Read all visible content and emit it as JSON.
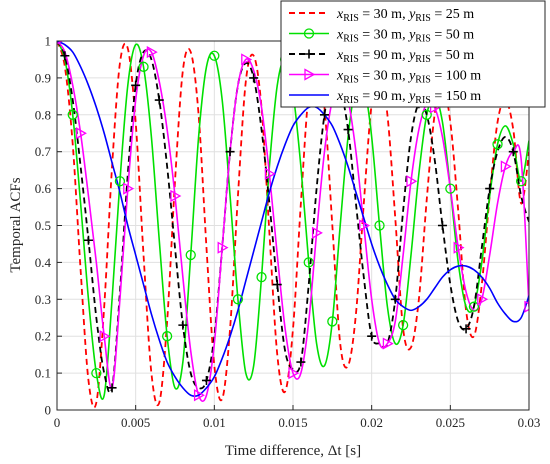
{
  "chart_data": {
    "type": "line",
    "title": "",
    "xlabel": "Time difference, Δt [s]",
    "ylabel": "Temporal ACFs",
    "xlim": [
      0,
      0.03
    ],
    "ylim": [
      0,
      1
    ],
    "x_ticks": [
      0,
      0.005,
      0.01,
      0.015,
      0.02,
      0.025,
      0.03
    ],
    "x_tick_labels": [
      "0",
      "0.005",
      "0.01",
      "0.015",
      "0.02",
      "0.025",
      "0.03"
    ],
    "y_ticks": [
      0,
      0.1,
      0.2,
      0.3,
      0.4,
      0.5,
      0.6,
      0.7,
      0.8,
      0.9,
      1
    ],
    "y_tick_labels": [
      "0",
      "0.1",
      "0.2",
      "0.3",
      "0.4",
      "0.5",
      "0.6",
      "0.7",
      "0.8",
      "0.9",
      "1"
    ],
    "grid": true,
    "legend_position": "top-right",
    "series": [
      {
        "name": "x_RIS = 30 m, y_RIS = 25 m",
        "legend_main": [
          "x",
          "= 30 m, ",
          "y",
          "= 25 m"
        ],
        "legend_sub": [
          "RIS",
          "RIS"
        ],
        "color": "#ff0000",
        "line_style": "dashed",
        "marker": "none",
        "x": [
          0,
          0.0005,
          0.001,
          0.0015,
          0.002,
          0.0025,
          0.003,
          0.0035,
          0.004,
          0.0045,
          0.005,
          0.0055,
          0.006,
          0.0065,
          0.007,
          0.0075,
          0.008,
          0.0085,
          0.009,
          0.0095,
          0.01,
          0.0105,
          0.011,
          0.0115,
          0.012,
          0.0125,
          0.013,
          0.0135,
          0.014,
          0.0145,
          0.015,
          0.0155,
          0.016,
          0.0165,
          0.017,
          0.0175,
          0.018,
          0.0185,
          0.019,
          0.0195,
          0.02,
          0.0205,
          0.021,
          0.0215,
          0.022,
          0.0225,
          0.023,
          0.0235,
          0.024,
          0.0245,
          0.025,
          0.0255,
          0.026,
          0.0265,
          0.027,
          0.0275,
          0.028,
          0.0285,
          0.029,
          0.0295,
          0.03
        ],
        "y": [
          1.0,
          0.93,
          0.72,
          0.38,
          0.08,
          0.02,
          0.28,
          0.66,
          0.94,
          0.98,
          0.78,
          0.42,
          0.1,
          0.02,
          0.24,
          0.62,
          0.92,
          0.97,
          0.8,
          0.44,
          0.12,
          0.03,
          0.22,
          0.58,
          0.89,
          0.96,
          0.82,
          0.48,
          0.15,
          0.05,
          0.22,
          0.56,
          0.86,
          0.94,
          0.82,
          0.5,
          0.18,
          0.12,
          0.26,
          0.56,
          0.83,
          0.91,
          0.8,
          0.52,
          0.22,
          0.17,
          0.3,
          0.57,
          0.8,
          0.88,
          0.78,
          0.54,
          0.27,
          0.2,
          0.34,
          0.58,
          0.78,
          0.84,
          0.76,
          0.56,
          0.7
        ]
      },
      {
        "name": "x_RIS = 30 m, y_RIS = 50 m",
        "legend_main": [
          "x",
          "= 30 m, ",
          "y",
          "= 50 m"
        ],
        "legend_sub": [
          "RIS",
          "RIS"
        ],
        "color": "#00e000",
        "line_style": "solid",
        "marker": "circle",
        "x": [
          0,
          0.0005,
          0.001,
          0.0015,
          0.002,
          0.0025,
          0.003,
          0.0035,
          0.004,
          0.0045,
          0.005,
          0.0055,
          0.006,
          0.0065,
          0.007,
          0.0075,
          0.008,
          0.0085,
          0.009,
          0.0095,
          0.01,
          0.0105,
          0.011,
          0.0115,
          0.012,
          0.0125,
          0.013,
          0.0135,
          0.014,
          0.0145,
          0.015,
          0.0155,
          0.016,
          0.0165,
          0.017,
          0.0175,
          0.018,
          0.0185,
          0.019,
          0.0195,
          0.02,
          0.0205,
          0.021,
          0.0215,
          0.022,
          0.0225,
          0.023,
          0.0235,
          0.024,
          0.0245,
          0.025,
          0.0255,
          0.026,
          0.0265,
          0.027,
          0.0275,
          0.028,
          0.0285,
          0.029,
          0.0295,
          0.03
        ],
        "y": [
          1.0,
          0.95,
          0.8,
          0.56,
          0.3,
          0.1,
          0.04,
          0.3,
          0.62,
          0.88,
          0.99,
          0.93,
          0.74,
          0.46,
          0.2,
          0.06,
          0.13,
          0.42,
          0.74,
          0.93,
          0.96,
          0.84,
          0.58,
          0.3,
          0.1,
          0.12,
          0.36,
          0.66,
          0.88,
          0.95,
          0.86,
          0.66,
          0.4,
          0.18,
          0.12,
          0.24,
          0.5,
          0.74,
          0.88,
          0.88,
          0.74,
          0.5,
          0.28,
          0.18,
          0.23,
          0.42,
          0.64,
          0.8,
          0.85,
          0.78,
          0.6,
          0.4,
          0.28,
          0.28,
          0.4,
          0.58,
          0.72,
          0.77,
          0.72,
          0.62,
          0.73
        ]
      },
      {
        "name": "x_RIS = 90 m, y_RIS = 50 m",
        "legend_main": [
          "x",
          "= 90 m, ",
          "y",
          "= 50 m"
        ],
        "legend_sub": [
          "RIS",
          "RIS"
        ],
        "color": "#000000",
        "line_style": "dashed",
        "marker": "plus",
        "x": [
          0,
          0.0005,
          0.001,
          0.0015,
          0.002,
          0.0025,
          0.003,
          0.0035,
          0.004,
          0.0045,
          0.005,
          0.0055,
          0.006,
          0.0065,
          0.007,
          0.0075,
          0.008,
          0.0085,
          0.009,
          0.0095,
          0.01,
          0.0105,
          0.011,
          0.0115,
          0.012,
          0.0125,
          0.013,
          0.0135,
          0.014,
          0.0145,
          0.015,
          0.0155,
          0.016,
          0.0165,
          0.017,
          0.0175,
          0.018,
          0.0185,
          0.019,
          0.0195,
          0.02,
          0.0205,
          0.021,
          0.0215,
          0.022,
          0.0225,
          0.023,
          0.0235,
          0.024,
          0.0245,
          0.025,
          0.0255,
          0.026,
          0.0265,
          0.027,
          0.0275,
          0.028,
          0.0285,
          0.029,
          0.0295,
          0.03
        ],
        "y": [
          1.0,
          0.96,
          0.84,
          0.66,
          0.46,
          0.25,
          0.1,
          0.06,
          0.32,
          0.64,
          0.88,
          0.97,
          0.95,
          0.84,
          0.66,
          0.44,
          0.23,
          0.1,
          0.06,
          0.08,
          0.2,
          0.44,
          0.7,
          0.88,
          0.94,
          0.9,
          0.76,
          0.56,
          0.34,
          0.16,
          0.11,
          0.13,
          0.34,
          0.6,
          0.8,
          0.9,
          0.87,
          0.76,
          0.56,
          0.36,
          0.2,
          0.18,
          0.18,
          0.3,
          0.54,
          0.74,
          0.83,
          0.8,
          0.68,
          0.5,
          0.34,
          0.24,
          0.22,
          0.28,
          0.44,
          0.6,
          0.7,
          0.74,
          0.7,
          0.58,
          0.51
        ]
      },
      {
        "name": "x_RIS = 30 m, y_RIS = 100 m",
        "legend_main": [
          "x",
          "= 30 m, ",
          "y",
          "= 100 m"
        ],
        "legend_sub": [
          "RIS",
          "RIS"
        ],
        "color": "#ff00ff",
        "line_style": "solid",
        "marker": "triangle-right",
        "x": [
          0,
          0.0005,
          0.001,
          0.0015,
          0.002,
          0.0025,
          0.003,
          0.0035,
          0.004,
          0.0045,
          0.005,
          0.0055,
          0.006,
          0.0065,
          0.007,
          0.0075,
          0.008,
          0.0085,
          0.009,
          0.0095,
          0.01,
          0.0105,
          0.011,
          0.0115,
          0.012,
          0.0125,
          0.013,
          0.0135,
          0.014,
          0.0145,
          0.015,
          0.0155,
          0.016,
          0.0165,
          0.017,
          0.0175,
          0.018,
          0.0185,
          0.019,
          0.0195,
          0.02,
          0.0205,
          0.021,
          0.0215,
          0.022,
          0.0225,
          0.023,
          0.0235,
          0.024,
          0.0245,
          0.025,
          0.0255,
          0.026,
          0.0265,
          0.027,
          0.0275,
          0.028,
          0.0285,
          0.029,
          0.0295,
          0.03
        ],
        "y": [
          1.0,
          0.97,
          0.88,
          0.75,
          0.58,
          0.4,
          0.2,
          0.06,
          0.3,
          0.6,
          0.84,
          0.96,
          0.97,
          0.89,
          0.76,
          0.58,
          0.36,
          0.16,
          0.04,
          0.04,
          0.18,
          0.44,
          0.7,
          0.88,
          0.95,
          0.92,
          0.82,
          0.64,
          0.42,
          0.22,
          0.1,
          0.1,
          0.24,
          0.48,
          0.7,
          0.84,
          0.89,
          0.84,
          0.7,
          0.5,
          0.3,
          0.18,
          0.18,
          0.24,
          0.42,
          0.62,
          0.76,
          0.83,
          0.82,
          0.74,
          0.6,
          0.44,
          0.32,
          0.27,
          0.3,
          0.42,
          0.56,
          0.66,
          0.7,
          0.68,
          0.28
        ]
      },
      {
        "name": "x_RIS = 90 m, y_RIS = 150 m",
        "legend_main": [
          "x",
          "= 90 m, ",
          "y",
          "= 150 m"
        ],
        "legend_sub": [
          "RIS",
          "RIS"
        ],
        "color": "#0000ff",
        "line_style": "solid",
        "marker": "none",
        "x": [
          0,
          0.0005,
          0.001,
          0.0015,
          0.002,
          0.0025,
          0.003,
          0.0035,
          0.004,
          0.0045,
          0.005,
          0.0055,
          0.006,
          0.0065,
          0.007,
          0.0075,
          0.008,
          0.0085,
          0.009,
          0.0095,
          0.01,
          0.0105,
          0.011,
          0.0115,
          0.012,
          0.0125,
          0.013,
          0.0135,
          0.014,
          0.0145,
          0.015,
          0.0155,
          0.016,
          0.0165,
          0.017,
          0.0175,
          0.018,
          0.0185,
          0.019,
          0.0195,
          0.02,
          0.0205,
          0.021,
          0.0215,
          0.022,
          0.0225,
          0.023,
          0.0235,
          0.024,
          0.0245,
          0.025,
          0.0255,
          0.026,
          0.0265,
          0.027,
          0.0275,
          0.028,
          0.0285,
          0.029,
          0.0295,
          0.03
        ],
        "y": [
          1.0,
          0.99,
          0.97,
          0.93,
          0.88,
          0.82,
          0.75,
          0.67,
          0.59,
          0.5,
          0.42,
          0.34,
          0.26,
          0.19,
          0.13,
          0.09,
          0.06,
          0.04,
          0.04,
          0.06,
          0.09,
          0.14,
          0.2,
          0.27,
          0.35,
          0.43,
          0.51,
          0.59,
          0.66,
          0.72,
          0.77,
          0.8,
          0.82,
          0.82,
          0.8,
          0.77,
          0.72,
          0.66,
          0.59,
          0.52,
          0.45,
          0.39,
          0.34,
          0.3,
          0.28,
          0.27,
          0.28,
          0.3,
          0.33,
          0.36,
          0.38,
          0.39,
          0.39,
          0.38,
          0.36,
          0.33,
          0.29,
          0.26,
          0.24,
          0.25,
          0.31
        ]
      }
    ]
  }
}
